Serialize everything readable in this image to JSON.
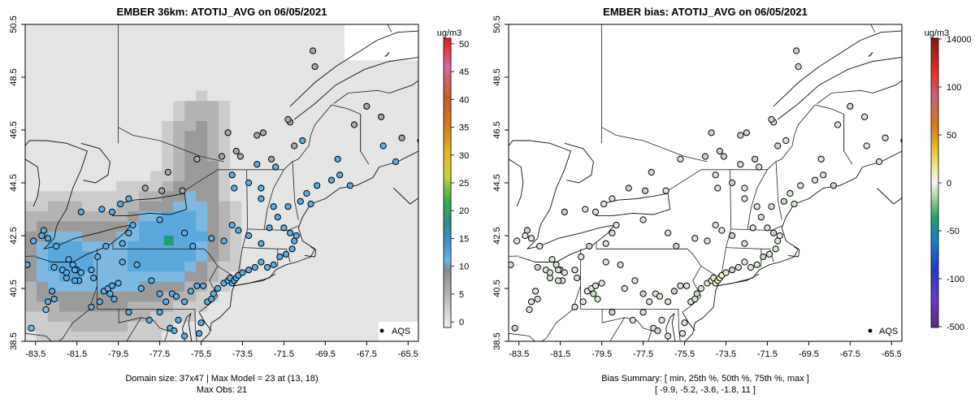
{
  "chart_data": [
    {
      "type": "heatmap",
      "title": "EMBER 36km: ATOTIJ_AVG on 06/05/2021",
      "x_ticks": [
        "-83.5",
        "-81.5",
        "-79.5",
        "-77.5",
        "-75.5",
        "-73.5",
        "-71.5",
        "-69.5",
        "-67.5",
        "-65.5"
      ],
      "y_ticks": [
        "38.5",
        "40.5",
        "42.5",
        "44.5",
        "46.5",
        "48.5",
        "50.5"
      ],
      "xlim": [
        -84.0,
        -65.0
      ],
      "ylim": [
        38.5,
        50.5
      ],
      "colorbar": {
        "unit": "ug/m3",
        "ticks": [
          "0",
          "5",
          "10",
          "15",
          "20",
          "25",
          "30",
          "35",
          "40",
          "45",
          "50"
        ],
        "range": [
          -1,
          51
        ]
      },
      "legend_label": "AQS",
      "footer_line1": "Domain size: 37x47 | Max Model = 23 at (13, 18)",
      "footer_line2": "Max Obs: 21",
      "domain_size": "37x47",
      "max_model": 23,
      "max_obs": 21
    },
    {
      "type": "scatter",
      "title": "EMBER bias: ATOTIJ_AVG on 06/05/2021",
      "x_ticks": [
        "-83.5",
        "-81.5",
        "-79.5",
        "-77.5",
        "-75.5",
        "-73.5",
        "-71.5",
        "-69.5",
        "-67.5",
        "-65.5"
      ],
      "y_ticks": [
        "38.5",
        "40.5",
        "42.5",
        "44.5",
        "46.5",
        "48.5",
        "50.5"
      ],
      "xlim": [
        -84.0,
        -65.0
      ],
      "ylim": [
        38.5,
        50.5
      ],
      "colorbar": {
        "unit": "ug/m3",
        "ticks": [
          "14000",
          "100",
          "50",
          "0",
          "-50",
          "-100",
          "-500"
        ]
      },
      "legend_label": "AQS",
      "footer_line1": "Bias Summary: [ min, 25th %, 50th %, 75th %, max ]",
      "footer_line2": "[ -9.9,   -5.2,   -3.6,   -1.8,   11 ]",
      "bias_summary": {
        "min": -9.9,
        "p25": -5.2,
        "p50": -3.6,
        "p75": -1.8,
        "max": 11
      }
    }
  ]
}
